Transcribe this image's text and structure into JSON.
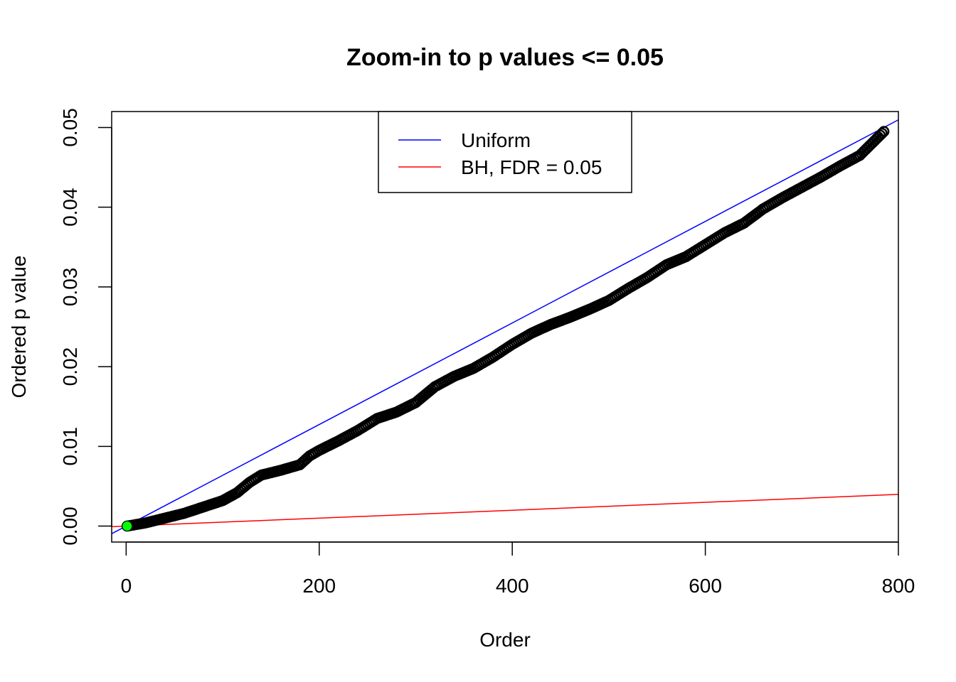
{
  "chart_data": {
    "type": "scatter",
    "title": "Zoom-in to p values <= 0.05",
    "xlabel": "Order",
    "ylabel": "Ordered p value",
    "xlim": [
      -15,
      800
    ],
    "ylim": [
      -0.002,
      0.052
    ],
    "x_ticks": [
      0,
      200,
      400,
      600,
      800
    ],
    "x_tick_labels": [
      "0",
      "200",
      "400",
      "600",
      "800"
    ],
    "y_ticks": [
      0.0,
      0.01,
      0.02,
      0.03,
      0.04,
      0.05
    ],
    "y_tick_labels": [
      "0.00",
      "0.01",
      "0.02",
      "0.03",
      "0.04",
      "0.05"
    ],
    "grid": false,
    "series": [
      {
        "name": "Ordered p values",
        "kind": "points",
        "color": "#000000",
        "x": [
          1,
          20,
          40,
          60,
          80,
          100,
          115,
          128,
          140,
          160,
          180,
          190,
          200,
          220,
          240,
          260,
          280,
          300,
          320,
          340,
          360,
          380,
          400,
          420,
          440,
          460,
          480,
          500,
          520,
          540,
          560,
          580,
          600,
          620,
          640,
          660,
          680,
          700,
          720,
          740,
          760,
          785
        ],
        "y": [
          0.0,
          0.0004,
          0.001,
          0.0016,
          0.0024,
          0.0032,
          0.0042,
          0.0055,
          0.0064,
          0.007,
          0.0077,
          0.0088,
          0.0095,
          0.0107,
          0.012,
          0.0135,
          0.0143,
          0.0155,
          0.0175,
          0.0188,
          0.0198,
          0.0212,
          0.0228,
          0.0242,
          0.0253,
          0.0262,
          0.0272,
          0.0283,
          0.0298,
          0.0312,
          0.0328,
          0.0338,
          0.0353,
          0.0368,
          0.038,
          0.0398,
          0.0412,
          0.0425,
          0.0438,
          0.0452,
          0.0465,
          0.0495
        ]
      },
      {
        "name": "Uniform",
        "kind": "line",
        "color": "#0000ff",
        "slope": 6.37e-05,
        "intercept": 0.0
      },
      {
        "name": "BH, FDR = 0.05",
        "kind": "line",
        "color": "#ff0000",
        "slope": 4.97e-06,
        "intercept": 0.0
      },
      {
        "name": "Highlighted point",
        "kind": "marker",
        "color": "#00ff00",
        "x": [
          1
        ],
        "y": [
          0.0
        ]
      }
    ],
    "legend": {
      "placement": "top-center",
      "entries": [
        {
          "label": "Uniform",
          "color": "#0000ff"
        },
        {
          "label": "BH, FDR = 0.05",
          "color": "#ff0000"
        }
      ]
    }
  }
}
